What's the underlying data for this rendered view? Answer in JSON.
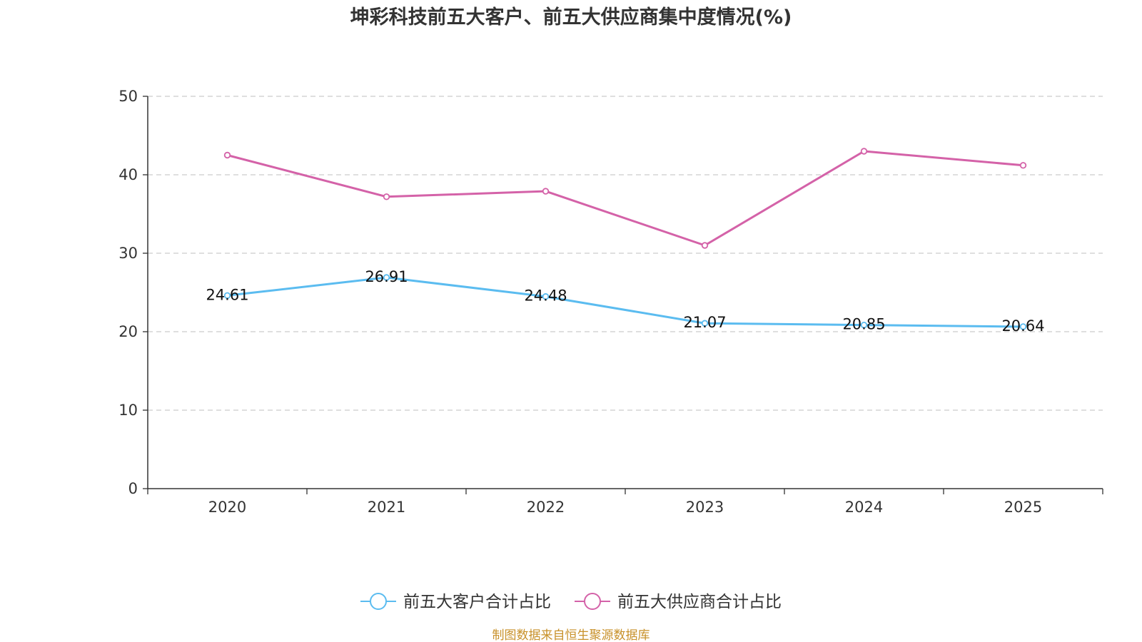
{
  "chart_data": {
    "type": "line",
    "title": "坤彩科技前五大客户、前五大供应商集中度情况(%)",
    "categories": [
      "2020",
      "2021",
      "2022",
      "2023",
      "2024",
      "2025"
    ],
    "ylim": [
      0,
      50
    ],
    "yticks": [
      0,
      10,
      20,
      30,
      40,
      50
    ],
    "grid": true,
    "legend_position": "bottom-center",
    "series": [
      {
        "name": "前五大客户合计占比",
        "color": "#5bbcf0",
        "values": [
          24.61,
          26.91,
          24.48,
          21.07,
          20.85,
          20.64
        ],
        "labels": [
          "24.61",
          "26.91",
          "24.48",
          "21.07",
          "20.85",
          "20.64"
        ],
        "show_labels": true
      },
      {
        "name": "前五大供应商合计占比",
        "color": "#d462a8",
        "values": [
          42.5,
          37.2,
          37.9,
          31.0,
          43.0,
          41.2
        ],
        "show_labels": false
      }
    ],
    "source": "制图数据来自恒生聚源数据库",
    "source_color": "#c8912a"
  }
}
